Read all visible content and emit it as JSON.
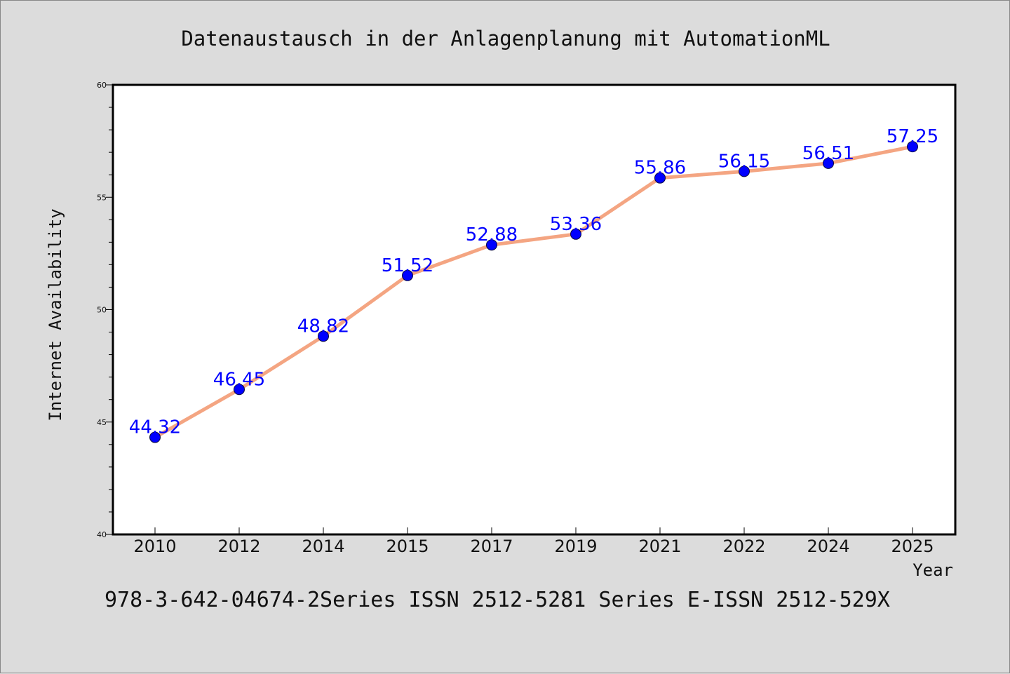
{
  "colors": {
    "background": "#dcdcdc",
    "plot_background": "#ffffff",
    "line": "#f4a582",
    "marker": "#0000ff",
    "data_label": "#0000ff",
    "text": "#111111"
  },
  "footer": {
    "text": "978-3-642-04674-2Series ISSN 2512-5281 Series E-ISSN 2512-529X"
  },
  "chart_data": {
    "type": "line",
    "title": "Datenaustausch in der Anlagenplanung mit AutomationML",
    "xlabel": "Year",
    "ylabel": "Internet Availability",
    "categories": [
      "2010",
      "2012",
      "2014",
      "2015",
      "2017",
      "2019",
      "2021",
      "2022",
      "2024",
      "2025"
    ],
    "series": [
      {
        "values": [
          44.32,
          46.45,
          48.82,
          51.52,
          52.88,
          53.36,
          55.86,
          56.15,
          56.51,
          57.25
        ]
      }
    ],
    "data_labels": [
      "44.32",
      "46.45",
      "48.82",
      "51.52",
      "52.88",
      "53.36",
      "55.86",
      "56.15",
      "56.51",
      "57.25"
    ],
    "ylim": [
      40,
      60
    ],
    "yticks": [
      "40",
      "45",
      "50",
      "55",
      "60"
    ],
    "grid": false,
    "legend": "none"
  }
}
